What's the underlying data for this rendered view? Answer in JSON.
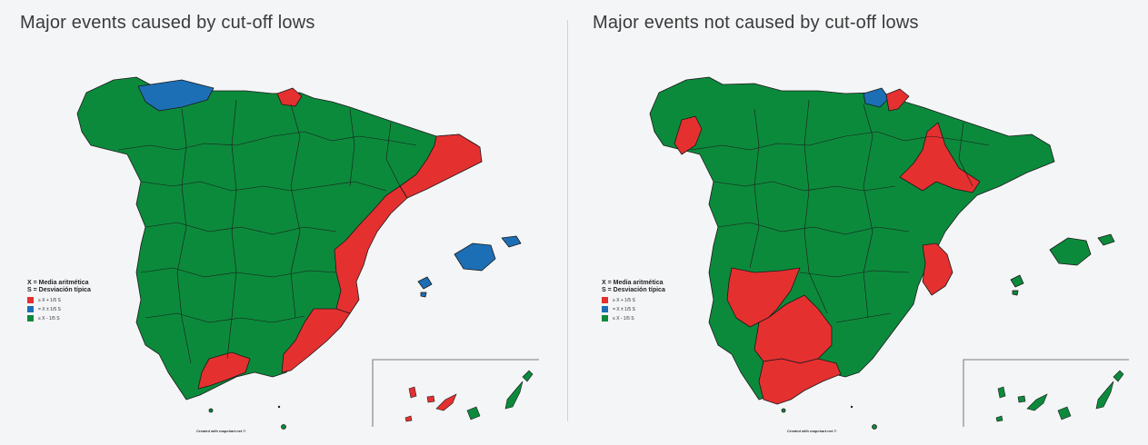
{
  "colors": {
    "above": "#e53030",
    "mean": "#1c6fb5",
    "below": "#0c8a3c",
    "border": "#1a1a1a"
  },
  "maps": [
    {
      "title": "Major events caused by cut-off lows",
      "regions": {
        "asturias": "mean",
        "gipuzkoa": "above",
        "catalonia_coast": "above",
        "valencia": "above",
        "murcia": "above",
        "malaga": "above",
        "balearic_mallorca": "mean",
        "balearic_ibiza": "mean",
        "canary_tenerife": "above",
        "canary_gran_canaria": "above"
      },
      "legend": {
        "line1": "X = Media aritmética",
        "line2": "S = Desviación típica",
        "items": [
          {
            "label": "≥ X + 1/5 S",
            "color": "above"
          },
          {
            "label": "= X ± 1/5 S",
            "color": "mean"
          },
          {
            "label": "≤ X - 1/5 S",
            "color": "below"
          }
        ]
      },
      "credit": "Created with mapchart.net ©"
    },
    {
      "title": "Major events not caused by cut-off lows",
      "regions": {
        "pontevedra": "above",
        "bizkaia": "mean",
        "gipuzkoa": "above",
        "zaragoza": "above",
        "valencia": "above",
        "badajoz": "above",
        "sevilla_cordoba": "above",
        "cadiz_malaga": "above"
      },
      "legend": {
        "line1": "X = Media aritmética",
        "line2": "S = Desviación típica",
        "items": [
          {
            "label": "≥ X + 1/5 S",
            "color": "above"
          },
          {
            "label": "= X ± 1/5 S",
            "color": "mean"
          },
          {
            "label": "≤ X - 1/5 S",
            "color": "below"
          }
        ]
      },
      "credit": "Created with mapchart.net ©"
    }
  ]
}
